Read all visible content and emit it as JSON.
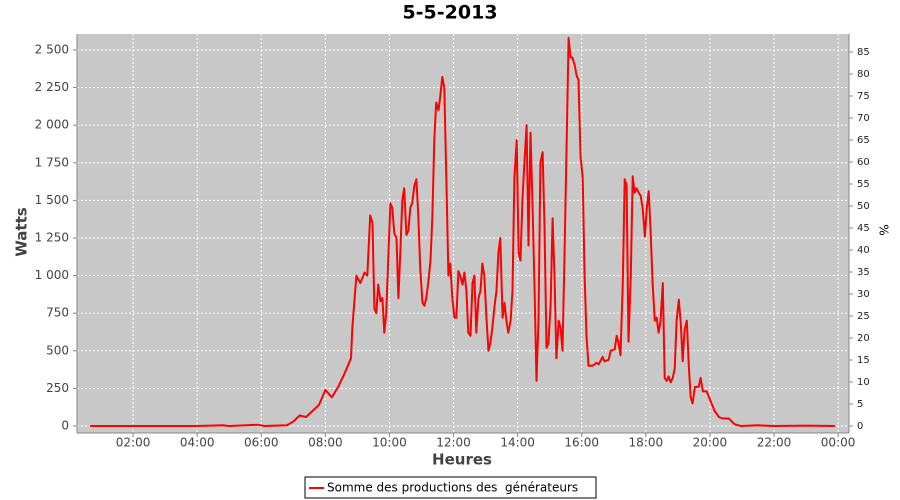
{
  "chart_data": {
    "type": "line",
    "title": "5-5-2013",
    "xlabel": "Heures",
    "ylabel": "Watts",
    "y2label": "%",
    "x": [
      0.66,
      2,
      4,
      4.8,
      5.0,
      5.9,
      6.1,
      6.8,
      7.0,
      7.2,
      7.4,
      7.6,
      7.8,
      8.0,
      8.2,
      8.4,
      8.6,
      8.8,
      8.84,
      8.97,
      9.09,
      9.22,
      9.31,
      9.4,
      9.47,
      9.53,
      9.59,
      9.65,
      9.72,
      9.78,
      9.84,
      9.9,
      9.97,
      10.03,
      10.09,
      10.15,
      10.22,
      10.28,
      10.34,
      10.4,
      10.46,
      10.53,
      10.59,
      10.65,
      10.71,
      10.78,
      10.84,
      10.9,
      10.96,
      11.03,
      11.09,
      11.15,
      11.21,
      11.28,
      11.34,
      11.4,
      11.46,
      11.53,
      11.59,
      11.65,
      11.71,
      11.78,
      11.84,
      11.9,
      11.96,
      12.03,
      12.09,
      12.15,
      12.21,
      12.28,
      12.34,
      12.4,
      12.46,
      12.53,
      12.59,
      12.65,
      12.71,
      12.78,
      12.84,
      12.9,
      12.96,
      13.03,
      13.09,
      13.15,
      13.21,
      13.28,
      13.34,
      13.4,
      13.46,
      13.53,
      13.59,
      13.65,
      13.71,
      13.78,
      13.84,
      13.9,
      13.97,
      14.03,
      14.09,
      14.15,
      14.21,
      14.28,
      14.34,
      14.4,
      14.46,
      14.53,
      14.59,
      14.65,
      14.71,
      14.78,
      14.84,
      14.9,
      14.96,
      15.03,
      15.09,
      15.15,
      15.21,
      15.28,
      15.34,
      15.4,
      15.46,
      15.53,
      15.59,
      15.65,
      15.71,
      15.78,
      15.84,
      15.9,
      15.96,
      16.03,
      16.09,
      16.15,
      16.21,
      16.34,
      16.46,
      16.53,
      16.65,
      16.71,
      16.84,
      16.9,
      17.03,
      17.09,
      17.15,
      17.21,
      17.28,
      17.34,
      17.4,
      17.46,
      17.53,
      17.59,
      17.65,
      17.71,
      17.78,
      17.84,
      17.9,
      17.97,
      18.03,
      18.09,
      18.15,
      18.21,
      18.28,
      18.34,
      18.4,
      18.46,
      18.53,
      18.59,
      18.65,
      18.71,
      18.78,
      18.84,
      18.9,
      18.96,
      19.03,
      19.09,
      19.15,
      19.21,
      19.28,
      19.34,
      19.4,
      19.46,
      19.53,
      19.65,
      19.71,
      19.78,
      19.9,
      20.03,
      20.15,
      20.28,
      20.4,
      20.59,
      20.78,
      20.97,
      21.5,
      22,
      23,
      23.9
    ],
    "series": [
      {
        "name": "Somme des productions des  générateurs",
        "color": "#ff0000",
        "values": [
          0,
          0,
          0,
          5,
          0,
          8,
          0,
          5,
          30,
          70,
          60,
          100,
          140,
          240,
          190,
          260,
          350,
          450,
          650,
          1000,
          950,
          1020,
          1000,
          1400,
          1350,
          780,
          750,
          940,
          830,
          850,
          620,
          750,
          1150,
          1480,
          1450,
          1280,
          1250,
          850,
          1150,
          1500,
          1580,
          1270,
          1300,
          1450,
          1480,
          1600,
          1640,
          1400,
          1050,
          820,
          800,
          850,
          950,
          1100,
          1400,
          1900,
          2150,
          2100,
          2200,
          2320,
          2250,
          1600,
          1000,
          1080,
          850,
          720,
          720,
          1030,
          1000,
          940,
          1020,
          900,
          620,
          600,
          950,
          1000,
          620,
          850,
          900,
          1080,
          1000,
          700,
          500,
          550,
          650,
          800,
          900,
          1150,
          1250,
          720,
          820,
          700,
          620,
          700,
          900,
          1650,
          1900,
          1150,
          1100,
          1500,
          1750,
          2000,
          1200,
          1950,
          1500,
          900,
          300,
          700,
          1750,
          1820,
          1300,
          520,
          550,
          800,
          1380,
          1000,
          450,
          700,
          650,
          500,
          1100,
          1900,
          2580,
          2450,
          2450,
          2400,
          2330,
          2300,
          1800,
          1650,
          1000,
          600,
          400,
          400,
          420,
          410,
          460,
          430,
          440,
          500,
          510,
          600,
          550,
          470,
          950,
          1640,
          1600,
          560,
          1000,
          1660,
          1550,
          1580,
          1550,
          1530,
          1450,
          1260,
          1450,
          1560,
          1300,
          950,
          700,
          720,
          620,
          700,
          950,
          320,
          300,
          330,
          290,
          320,
          380,
          700,
          840,
          680,
          430,
          640,
          700,
          400,
          190,
          150,
          260,
          260,
          320,
          230,
          230,
          160,
          100,
          60,
          50,
          50,
          10,
          0,
          5,
          0,
          3,
          0
        ]
      }
    ],
    "xlim": [
      0.25,
      24.34
    ],
    "xticks": [
      {
        "value": 2,
        "label": "02:00"
      },
      {
        "value": 4,
        "label": "04:00"
      },
      {
        "value": 6,
        "label": "06:00"
      },
      {
        "value": 8,
        "label": "08:00"
      },
      {
        "value": 10,
        "label": "10:00"
      },
      {
        "value": 12,
        "label": "12:00"
      },
      {
        "value": 14,
        "label": "14:00"
      },
      {
        "value": 16,
        "label": "16:00"
      },
      {
        "value": 18,
        "label": "18:00"
      },
      {
        "value": 20,
        "label": "20:00"
      },
      {
        "value": 22,
        "label": "22:00"
      },
      {
        "value": 24,
        "label": "00:00"
      }
    ],
    "ylim": [
      -46.5,
      2606
    ],
    "yticks": [
      0,
      250,
      500,
      750,
      {
        "value": 1000,
        "label": "1 000"
      },
      {
        "value": 1250,
        "label": "1 250"
      },
      {
        "value": 1500,
        "label": "1 500"
      },
      {
        "value": 1750,
        "label": "1 750"
      },
      {
        "value": 2000,
        "label": "2 000"
      },
      {
        "value": 2250,
        "label": "2 250"
      },
      {
        "value": 2500,
        "label": "2 500"
      }
    ],
    "y2lim": [
      -1.59,
      89.1
    ],
    "y2ticks": [
      0,
      5,
      10,
      15,
      20,
      25,
      30,
      35,
      40,
      45,
      50,
      55,
      60,
      65,
      70,
      75,
      80,
      85
    ],
    "grid": true,
    "legend": "bottom"
  }
}
